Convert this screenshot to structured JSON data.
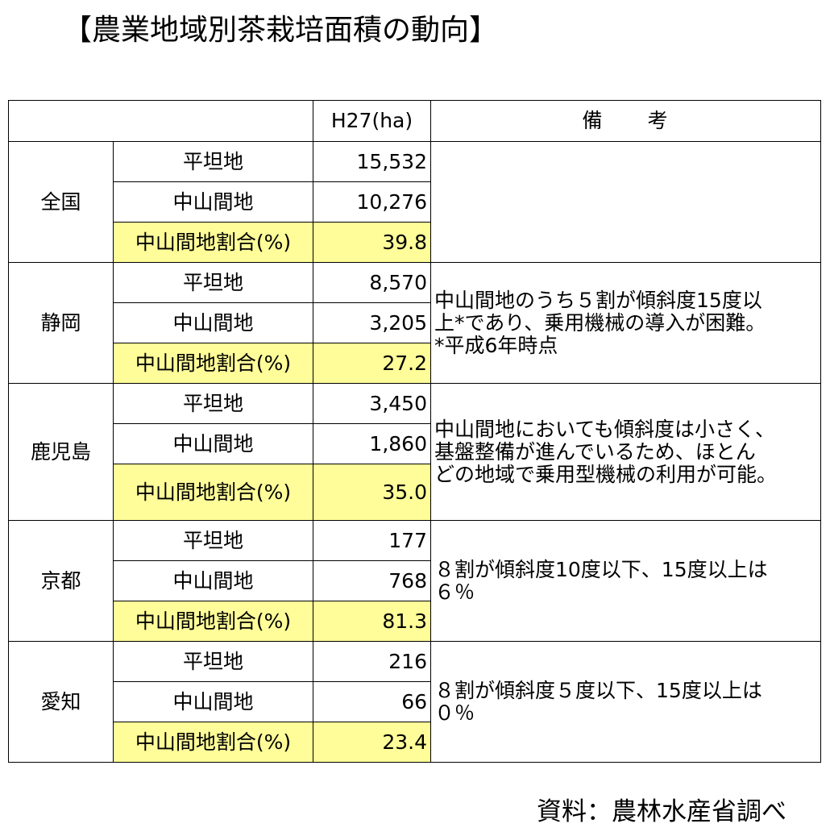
{
  "title": "【農業地域別茶栽培面積の動向】",
  "header": {
    "value_label": "H27(ha)",
    "note_label": "備　　考"
  },
  "item_labels": {
    "flat": "平坦地",
    "mountain": "中山間地",
    "ratio": "中山間地割合(%)"
  },
  "regions": [
    {
      "name": "全国",
      "flat": "15,532",
      "mountain": "10,276",
      "ratio": "39.8",
      "note": ""
    },
    {
      "name": "静岡",
      "flat": "8,570",
      "mountain": "3,205",
      "ratio": "27.2",
      "note": "中山間地のうち５割が傾斜度15度以\n上*であり、乗用機械の導入が困難。\n*平成6年時点"
    },
    {
      "name": "鹿児島",
      "flat": "3,450",
      "mountain": "1,860",
      "ratio": "35.0",
      "note": "中山間地においても傾斜度は小さく、\n基盤整備が進んでいるため、ほとん\nどの地域で乗用型機械の利用が可能。"
    },
    {
      "name": "京都",
      "flat": "177",
      "mountain": "768",
      "ratio": "81.3",
      "note": "８割が傾斜度10度以下、15度以上は\n６％"
    },
    {
      "name": "愛知",
      "flat": "216",
      "mountain": "66",
      "ratio": "23.4",
      "note": "８割が傾斜度５度以下、15度以上は\n０％"
    }
  ],
  "source": "資料：農林水産省調べ",
  "colors": {
    "ratio_highlight": "#fffd99",
    "border": "#000000"
  }
}
